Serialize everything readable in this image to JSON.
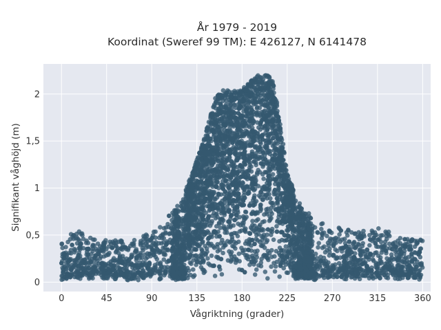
{
  "chart_data": {
    "type": "scatter",
    "title": "År 1979 - 2019",
    "subtitle": "Koordinat (Sweref 99 TM): E 426127, N 6141478",
    "xlabel": "Vågriktning (grader)",
    "ylabel": "Signifikant våghöjd (m)",
    "xlim": [
      -18,
      368
    ],
    "ylim": [
      -0.1,
      2.32
    ],
    "xticks": [
      0,
      45,
      90,
      135,
      180,
      225,
      270,
      315,
      360
    ],
    "xtick_labels": [
      "0",
      "45",
      "90",
      "135",
      "180",
      "225",
      "270",
      "315",
      "360"
    ],
    "yticks": [
      0,
      0.5,
      1,
      1.5,
      2
    ],
    "ytick_labels": [
      "0",
      "0,5",
      "1",
      "1,5",
      "2"
    ],
    "grid": true,
    "legend": "none",
    "colors": {
      "marker": "#34596f",
      "plot_bg": "#e5e8f0",
      "grid": "#ffffff"
    },
    "envelope": {
      "description": "upper bound of significant wave height by direction",
      "x": [
        0,
        15,
        30,
        45,
        60,
        75,
        90,
        100,
        110,
        120,
        130,
        140,
        148,
        152,
        155,
        160,
        170,
        180,
        186,
        190,
        195,
        200,
        205,
        210,
        215,
        220,
        225,
        235,
        245,
        255,
        270,
        290,
        315,
        340,
        360
      ],
      "y_max": [
        0.45,
        0.55,
        0.5,
        0.45,
        0.45,
        0.45,
        0.55,
        0.65,
        0.75,
        0.9,
        1.15,
        1.45,
        1.75,
        1.95,
        2.0,
        2.05,
        2.03,
        2.05,
        2.12,
        2.15,
        2.2,
        2.2,
        2.2,
        2.18,
        1.9,
        1.55,
        1.15,
        0.9,
        0.75,
        0.65,
        0.6,
        0.55,
        0.6,
        0.5,
        0.45
      ],
      "y_min": 0.02
    },
    "n_points_approx": 20000
  }
}
